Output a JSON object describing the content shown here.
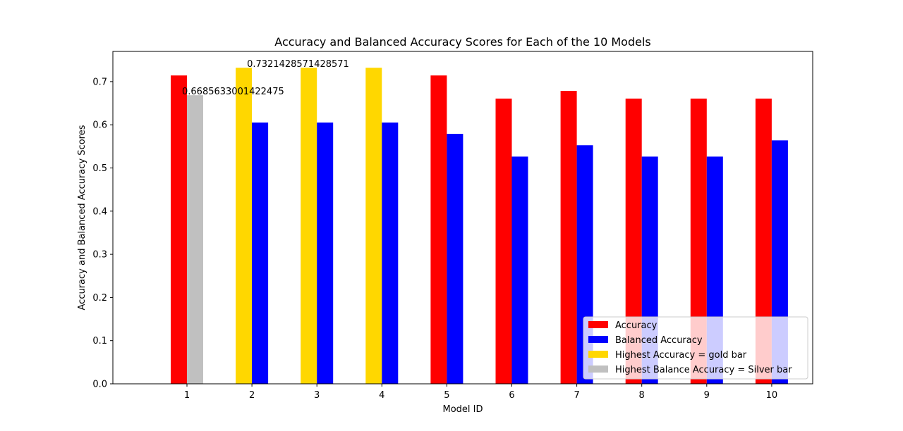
{
  "chart_data": {
    "type": "bar",
    "title": "Accuracy and Balanced Accuracy Scores for Each of the 10 Models",
    "xlabel": "Model ID",
    "ylabel": "Accuracy and Balanced Accuracy Scores",
    "ylim": [
      0,
      0.77
    ],
    "yticks": [
      "0.0",
      "0.1",
      "0.2",
      "0.3",
      "0.4",
      "0.5",
      "0.6",
      "0.7"
    ],
    "categories": [
      "1",
      "2",
      "3",
      "4",
      "5",
      "6",
      "7",
      "8",
      "9",
      "10"
    ],
    "series": [
      {
        "name": "Accuracy",
        "values": [
          0.7142857142857143,
          0.7321428571428571,
          0.7321428571428571,
          0.7321428571428571,
          0.7142857142857143,
          0.6607142857142857,
          0.6785714285714286,
          0.6607142857142857,
          0.6607142857142857,
          0.6607142857142857
        ],
        "bar_colors": [
          "#ff0000",
          "#ffd700",
          "#ffd700",
          "#ffd700",
          "#ff0000",
          "#ff0000",
          "#ff0000",
          "#ff0000",
          "#ff0000",
          "#ff0000"
        ]
      },
      {
        "name": "Balanced Accuracy",
        "values": [
          0.6685633001422475,
          0.6052631578947368,
          0.6052631578947368,
          0.6052631578947368,
          0.5789473684210527,
          0.5263157894736842,
          0.5526315789473684,
          0.5263157894736842,
          0.5263157894736842,
          0.5639097744360902
        ],
        "bar_colors": [
          "#c0c0c0",
          "#0000ff",
          "#0000ff",
          "#0000ff",
          "#0000ff",
          "#0000ff",
          "#0000ff",
          "#0000ff",
          "#0000ff",
          "#0000ff"
        ]
      }
    ],
    "annotations": [
      {
        "text": "0.7321428571428571",
        "category_index": 1,
        "value": 0.7321428571428571
      },
      {
        "text": "0.6685633001422475",
        "category_index": 0,
        "value": 0.6685633001422475
      }
    ],
    "legend": {
      "placement": "lower right",
      "entries": [
        {
          "label": "Accuracy",
          "color": "#ff0000"
        },
        {
          "label": "Balanced Accuracy",
          "color": "#0000ff"
        },
        {
          "label": "Highest Accuracy = gold bar",
          "color": "#ffd700"
        },
        {
          "label": "Highest Balance Accuracy = Silver bar",
          "color": "#c0c0c0"
        }
      ]
    },
    "grid": false
  }
}
